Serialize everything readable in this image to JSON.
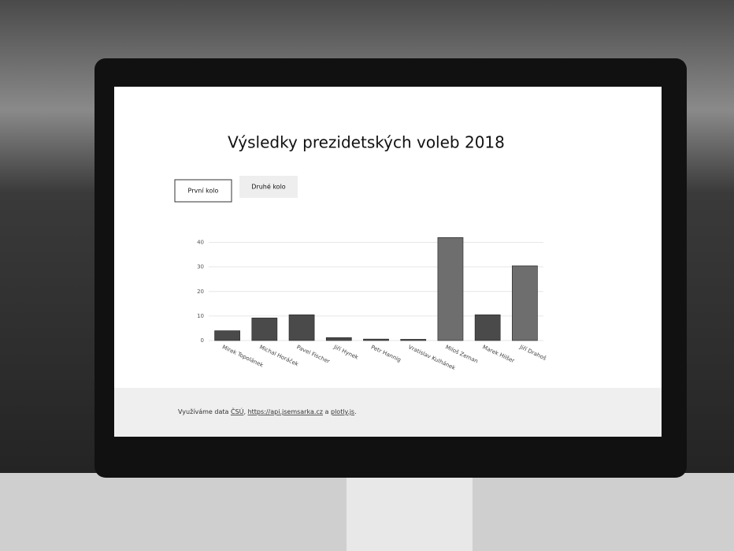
{
  "chart_data": {
    "type": "bar",
    "title": "Výsledky prezidetských voleb 2018",
    "categories": [
      "Mirek Topolánek",
      "Michal Horáček",
      "Pavel Fischer",
      "Jiří Hynek",
      "Petr Hannig",
      "Vratislav Kulhánek",
      "Miloš Zeman",
      "Marek Hilšer",
      "Jiří Drahoš"
    ],
    "values": [
      4,
      9.2,
      10.5,
      1.2,
      0.6,
      0.5,
      42,
      10.5,
      30.5
    ],
    "colors": [
      "#4a4a4a",
      "#4a4a4a",
      "#4a4a4a",
      "#4a4a4a",
      "#4a4a4a",
      "#4a4a4a",
      "#6e6e6e",
      "#4a4a4a",
      "#6e6e6e"
    ],
    "ylim": [
      0,
      45
    ],
    "yticks": [
      0,
      10,
      20,
      30,
      40
    ],
    "grid": true
  },
  "buttons": [
    "První kolo",
    "Druhé kolo"
  ],
  "footer": [
    "Využíváme data ",
    "ČSÚ",
    ", ",
    "https://api.jsemsarka.cz",
    " a ",
    "plotly.js",
    "."
  ]
}
